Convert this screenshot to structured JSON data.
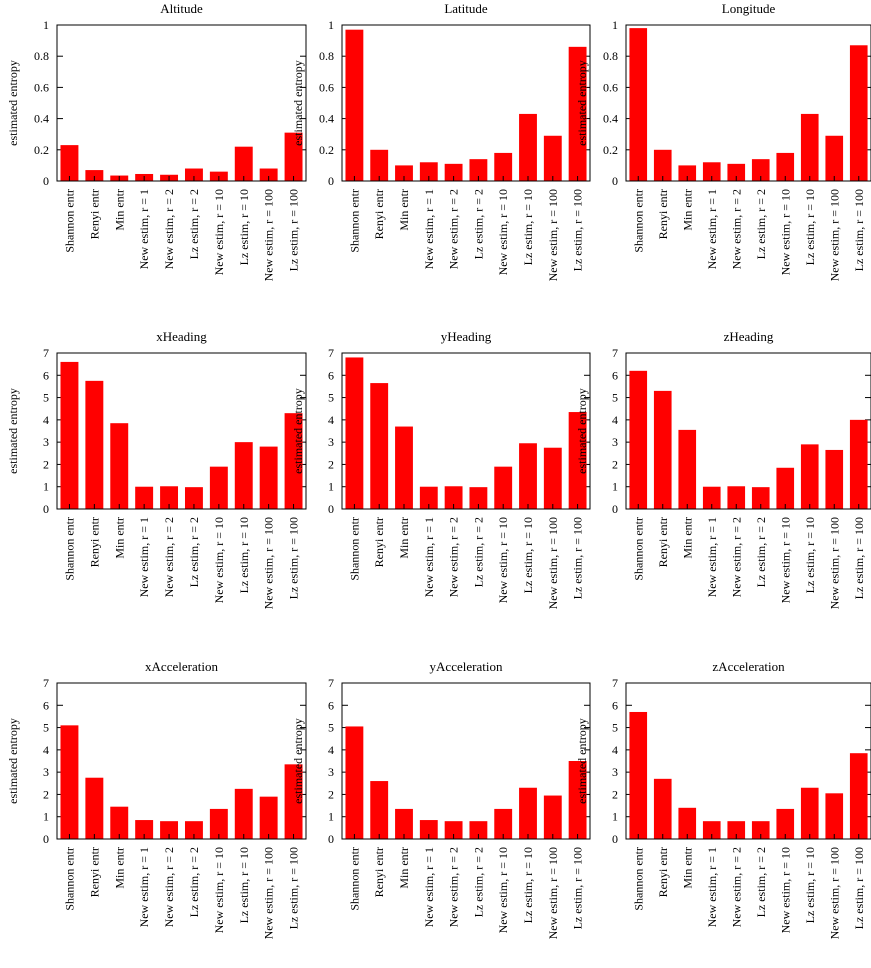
{
  "chart_data": [
    {
      "type": "bar",
      "title": "Altitude",
      "ylabel": "estimated entropy",
      "ylim": [
        0,
        1
      ],
      "yticks": [
        "0",
        "0.2",
        "0.4",
        "0.6",
        "0.8",
        "1"
      ],
      "categories": [
        "Shannon entr",
        "Renyi entr",
        "Min entr",
        "New estim, r = 1",
        "New estim, r = 2",
        "Lz estim, r = 2",
        "New estim, r = 10",
        "Lz estim, r = 10",
        "New estim, r = 100",
        "Lz estim, r = 100"
      ],
      "values": [
        0.23,
        0.07,
        0.035,
        0.045,
        0.04,
        0.08,
        0.06,
        0.22,
        0.08,
        0.31
      ],
      "bar_color": "#ff0000"
    },
    {
      "type": "bar",
      "title": "Latitude",
      "ylabel": "estimated entropy",
      "ylim": [
        0,
        1
      ],
      "yticks": [
        "0",
        "0.2",
        "0.4",
        "0.6",
        "0.8",
        "1"
      ],
      "categories": [
        "Shannon entr",
        "Renyi entr",
        "Min entr",
        "New estim, r = 1",
        "New estim, r = 2",
        "Lz estim, r = 2",
        "New estim, r = 10",
        "Lz estim, r = 10",
        "New estim, r = 100",
        "Lz estim, r = 100"
      ],
      "values": [
        0.97,
        0.2,
        0.1,
        0.12,
        0.11,
        0.14,
        0.18,
        0.43,
        0.29,
        0.86
      ],
      "bar_color": "#ff0000"
    },
    {
      "type": "bar",
      "title": "Longitude",
      "ylabel": "estimated entropy",
      "ylim": [
        0,
        1
      ],
      "yticks": [
        "0",
        "0.2",
        "0.4",
        "0.6",
        "0.8",
        "1"
      ],
      "categories": [
        "Shannon entr",
        "Renyi entr",
        "Min entr",
        "New estim, r = 1",
        "New estim, r = 2",
        "Lz estim, r = 2",
        "New estim, r = 10",
        "Lz estim, r = 10",
        "New estim, r = 100",
        "Lz estim, r = 100"
      ],
      "values": [
        0.98,
        0.2,
        0.1,
        0.12,
        0.11,
        0.14,
        0.18,
        0.43,
        0.29,
        0.87
      ],
      "bar_color": "#ff0000"
    },
    {
      "type": "bar",
      "title": "xHeading",
      "ylabel": "estimated entropy",
      "ylim": [
        0,
        7
      ],
      "yticks": [
        "0",
        "1",
        "2",
        "3",
        "4",
        "5",
        "6",
        "7"
      ],
      "categories": [
        "Shannon entr",
        "Renyi entr",
        "Min entr",
        "New estim, r = 1",
        "New estim, r = 2",
        "Lz estim, r = 2",
        "New estim, r = 10",
        "Lz estim, r = 10",
        "New estim, r = 100",
        "Lz estim, r = 100"
      ],
      "values": [
        6.6,
        5.75,
        3.85,
        1.0,
        1.02,
        0.98,
        1.9,
        3.0,
        2.8,
        4.3
      ],
      "bar_color": "#ff0000"
    },
    {
      "type": "bar",
      "title": "yHeading",
      "ylabel": "estimated entropy",
      "ylim": [
        0,
        7
      ],
      "yticks": [
        "0",
        "1",
        "2",
        "3",
        "4",
        "5",
        "6",
        "7"
      ],
      "categories": [
        "Shannon entr",
        "Renyi entr",
        "Min entr",
        "New estim, r = 1",
        "New estim, r = 2",
        "Lz estim, r = 2",
        "New estim, r = 10",
        "Lz estim, r = 10",
        "New estim, r = 100",
        "Lz estim, r = 100"
      ],
      "values": [
        6.8,
        5.65,
        3.7,
        1.0,
        1.02,
        0.98,
        1.9,
        2.95,
        2.75,
        4.35
      ],
      "bar_color": "#ff0000"
    },
    {
      "type": "bar",
      "title": "zHeading",
      "ylabel": "estimated entropy",
      "ylim": [
        0,
        7
      ],
      "yticks": [
        "0",
        "1",
        "2",
        "3",
        "4",
        "5",
        "6",
        "7"
      ],
      "categories": [
        "Shannon entr",
        "Renyi entr",
        "Min entr",
        "New estim, r = 1",
        "New estim, r = 2",
        "Lz estim, r = 2",
        "New estim, r = 10",
        "Lz estim, r = 10",
        "New estim, r = 100",
        "Lz estim, r = 100"
      ],
      "values": [
        6.2,
        5.3,
        3.55,
        1.0,
        1.02,
        0.98,
        1.85,
        2.9,
        2.65,
        4.0
      ],
      "bar_color": "#ff0000"
    },
    {
      "type": "bar",
      "title": "xAcceleration",
      "ylabel": "estimated entropy",
      "ylim": [
        0,
        7
      ],
      "yticks": [
        "0",
        "1",
        "2",
        "3",
        "4",
        "5",
        "6",
        "7"
      ],
      "categories": [
        "Shannon entr",
        "Renyi entr",
        "Min entr",
        "New estim, r = 1",
        "New estim, r = 2",
        "Lz estim, r = 2",
        "New estim, r = 10",
        "Lz estim, r = 10",
        "New estim, r = 100",
        "Lz estim, r = 100"
      ],
      "values": [
        5.1,
        2.75,
        1.45,
        0.85,
        0.8,
        0.8,
        1.35,
        2.25,
        1.9,
        3.35
      ],
      "bar_color": "#ff0000"
    },
    {
      "type": "bar",
      "title": "yAcceleration",
      "ylabel": "estimated entropy",
      "ylim": [
        0,
        7
      ],
      "yticks": [
        "0",
        "1",
        "2",
        "3",
        "4",
        "5",
        "6",
        "7"
      ],
      "categories": [
        "Shannon entr",
        "Renyi entr",
        "Min entr",
        "New estim, r = 1",
        "New estim, r = 2",
        "Lz estim, r = 2",
        "New estim, r = 10",
        "Lz estim, r = 10",
        "New estim, r = 100",
        "Lz estim, r = 100"
      ],
      "values": [
        5.05,
        2.6,
        1.35,
        0.85,
        0.8,
        0.8,
        1.35,
        2.3,
        1.95,
        3.5
      ],
      "bar_color": "#ff0000"
    },
    {
      "type": "bar",
      "title": "zAcceleration",
      "ylabel": "estimated entropy",
      "ylim": [
        0,
        7
      ],
      "yticks": [
        "0",
        "1",
        "2",
        "3",
        "4",
        "5",
        "6",
        "7"
      ],
      "categories": [
        "Shannon entr",
        "Renyi entr",
        "Min entr",
        "New estim, r = 1",
        "New estim, r = 2",
        "Lz estim, r = 2",
        "New estim, r = 10",
        "Lz estim, r = 10",
        "New estim, r = 100",
        "Lz estim, r = 100"
      ],
      "values": [
        5.7,
        2.7,
        1.4,
        0.8,
        0.8,
        0.8,
        1.35,
        2.3,
        2.05,
        3.85
      ],
      "bar_color": "#ff0000"
    }
  ]
}
